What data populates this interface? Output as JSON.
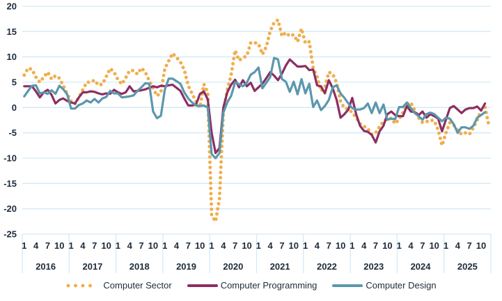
{
  "chart_data": {
    "type": "line",
    "title": "",
    "xlabel": "",
    "ylabel": "",
    "ylim": [
      -25,
      20
    ],
    "yticks": [
      20,
      15,
      10,
      5,
      0,
      -5,
      -10,
      -15,
      -20,
      -25
    ],
    "grid": true,
    "legend_position": "bottom",
    "years": [
      "2016",
      "2017",
      "2018",
      "2019",
      "2020",
      "2021",
      "2022",
      "2023",
      "2024",
      "2025"
    ],
    "month_tick_labels": [
      "1",
      "4",
      "7",
      "10"
    ],
    "x_frequency": "monthly, starting January 2016",
    "series": [
      {
        "name": "Computer Sector",
        "color": "#F0AE4E",
        "style": "dotted",
        "values": [
          6.4,
          7.8,
          7.5,
          6.0,
          5.0,
          6.0,
          7.0,
          5.6,
          6.3,
          5.8,
          4.3,
          2.7,
          1.2,
          0.7,
          2.0,
          3.5,
          5.0,
          5.0,
          5.4,
          4.4,
          4.6,
          6.1,
          7.7,
          7.0,
          5.5,
          4.6,
          5.9,
          7.3,
          7.3,
          6.6,
          7.8,
          7.0,
          5.3,
          3.8,
          2.3,
          3.0,
          7.7,
          9.2,
          10.7,
          9.9,
          9.0,
          7.4,
          4.3,
          2.7,
          1.2,
          0.0,
          4.6,
          3.0,
          -21.4,
          -22.5,
          -18.0,
          -1.0,
          3.5,
          6.5,
          11.3,
          9.3,
          9.8,
          10.2,
          12.8,
          12.8,
          12.6,
          10.5,
          12.0,
          15.1,
          16.8,
          17.3,
          14.1,
          14.8,
          14.1,
          14.4,
          13.0,
          15.6,
          12.7,
          13.0,
          7.8,
          6.1,
          3.3,
          4.0,
          7.0,
          6.6,
          4.9,
          1.2,
          -0.1,
          -0.3,
          -1.0,
          -2.0,
          -3.2,
          -3.7,
          -4.2,
          -5.3,
          -5.0,
          -3.8,
          -2.7,
          -2.3,
          -2.1,
          -3.2,
          -2.3,
          -1.0,
          0.6,
          1.0,
          -0.5,
          -2.0,
          -3.0,
          -2.8,
          -2.5,
          -2.6,
          -4.4,
          -7.5,
          -5.0,
          -3.0,
          -3.5,
          -4.5,
          -5.3,
          -5.0,
          -5.3,
          -4.0,
          -2.5,
          -0.5,
          0.1,
          -3.6
        ]
      },
      {
        "name": "Computer Programming",
        "color": "#8C2E62",
        "style": "solid",
        "values": [
          4.2,
          4.2,
          4.2,
          3.2,
          2.0,
          3.0,
          3.5,
          2.5,
          0.8,
          1.5,
          1.8,
          1.3,
          1.0,
          0.8,
          2.0,
          3.0,
          3.0,
          3.2,
          3.1,
          2.8,
          2.6,
          2.8,
          2.7,
          3.5,
          3.0,
          2.7,
          3.0,
          4.2,
          3.2,
          3.3,
          3.4,
          3.6,
          3.9,
          4.2,
          4.0,
          4.3,
          4.2,
          4.4,
          4.5,
          3.9,
          3.3,
          1.8,
          0.4,
          0.4,
          0.6,
          2.7,
          3.2,
          1.6,
          -5.0,
          -9.0,
          -8.0,
          0.0,
          3.0,
          4.5,
          5.5,
          4.0,
          5.4,
          4.2,
          4.9,
          3.3,
          4.0,
          4.7,
          5.8,
          7.0,
          6.3,
          5.4,
          6.7,
          8.3,
          9.5,
          8.8,
          8.1,
          8.1,
          8.2,
          7.4,
          7.5,
          4.4,
          4.2,
          2.8,
          5.4,
          3.8,
          1.5,
          -2.0,
          -1.3,
          -0.4,
          1.9,
          -1.3,
          -3.6,
          -4.6,
          -4.8,
          -5.4,
          -6.9,
          -4.7,
          -3.6,
          -1.3,
          -0.8,
          -1.5,
          -1.7,
          -1.7,
          0.3,
          -0.8,
          -0.9,
          -1.5,
          -0.8,
          -2.0,
          -1.3,
          -1.7,
          -2.2,
          -4.7,
          -2.4,
          -0.1,
          0.3,
          -0.4,
          -1.1,
          -0.4,
          -0.1,
          -0.1,
          0.2,
          -0.6,
          0.8
        ]
      },
      {
        "name": "Computer Design",
        "color": "#5B97AD",
        "style": "solid",
        "values": [
          2.2,
          3.3,
          4.3,
          4.4,
          2.8,
          3.0,
          2.7,
          3.4,
          2.7,
          4.3,
          3.6,
          2.6,
          -0.2,
          -0.2,
          0.5,
          0.8,
          1.4,
          1.0,
          1.7,
          1.0,
          1.8,
          2.1,
          3.3,
          2.8,
          2.8,
          2.0,
          2.1,
          2.2,
          2.4,
          3.3,
          4.0,
          4.8,
          4.7,
          -0.8,
          -2.1,
          -1.6,
          3.5,
          5.7,
          5.7,
          5.2,
          4.7,
          3.0,
          1.8,
          1.0,
          0.4,
          0.3,
          0.4,
          0.0,
          -9.2,
          -10.0,
          -9.0,
          -1.0,
          1.0,
          2.3,
          5.0,
          4.6,
          4.2,
          4.9,
          6.5,
          7.0,
          7.9,
          3.8,
          4.9,
          6.0,
          9.8,
          9.5,
          5.6,
          5.1,
          3.1,
          5.1,
          2.6,
          5.6,
          2.8,
          4.7,
          0.1,
          1.4,
          -0.5,
          0.3,
          1.5,
          4.0,
          4.4,
          2.8,
          1.9,
          0.8,
          -0.1,
          -0.4,
          -0.4,
          -0.1,
          0.8,
          -1.1,
          1.0,
          -1.1,
          0.6,
          -2.4,
          -2.2,
          -2.3,
          0.1,
          0.1,
          1.0,
          -0.1,
          -1.1,
          -1.7,
          -2.4,
          -1.3,
          -1.0,
          -1.3,
          -2.0,
          -2.7,
          -2.0,
          -2.2,
          -3.3,
          -5.0,
          -3.9,
          -3.9,
          -4.2,
          -3.6,
          -2.0,
          -1.5,
          -0.9
        ]
      }
    ]
  }
}
